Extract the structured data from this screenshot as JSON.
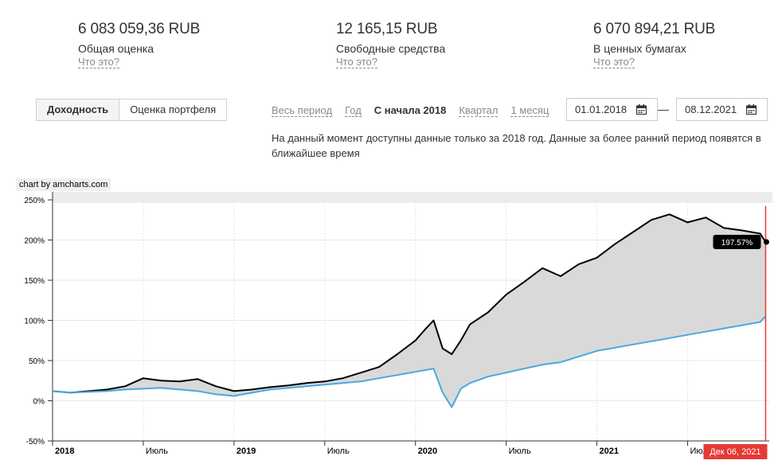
{
  "stats": [
    {
      "value": "6 083 059,36 RUB",
      "label": "Общая оценка",
      "help": "Что это?"
    },
    {
      "value": "12 165,15 RUB",
      "label": "Свободные средства",
      "help": "Что это?"
    },
    {
      "value": "6 070 894,21 RUB",
      "label": "В ценных бумагах",
      "help": "Что это?"
    }
  ],
  "tabs": {
    "yield": "Доходность",
    "portfolio": "Оценка портфеля"
  },
  "periods": {
    "all": "Весь период",
    "year": "Год",
    "since2018": "С начала 2018",
    "quarter": "Квартал",
    "month": "1 месяц"
  },
  "dates": {
    "from": "01.01.2018",
    "to": "08.12.2021",
    "separator": "—"
  },
  "notice": "На данный момент доступны данные только за 2018 год. Данные за более ранний период появятся в ближайшее время",
  "credit": "chart by amcharts.com",
  "chart_data": {
    "type": "line",
    "ylim": [
      -50,
      260
    ],
    "yticks": [
      "250%",
      "200%",
      "150%",
      "100%",
      "50%",
      "0%",
      "-50%"
    ],
    "xticks": [
      "2018",
      "Июль",
      "2019",
      "Июль",
      "2020",
      "Июль",
      "2021",
      "Июль"
    ],
    "cursor_label": "Дек 06, 2021",
    "value_label": "197.57%",
    "series": [
      {
        "name": "portfolio",
        "color": "#000000",
        "x": [
          2018.0,
          2018.1,
          2018.2,
          2018.3,
          2018.4,
          2018.5,
          2018.6,
          2018.7,
          2018.8,
          2018.9,
          2019.0,
          2019.1,
          2019.2,
          2019.3,
          2019.4,
          2019.5,
          2019.6,
          2019.7,
          2019.8,
          2019.9,
          2020.0,
          2020.05,
          2020.1,
          2020.15,
          2020.2,
          2020.25,
          2020.3,
          2020.4,
          2020.5,
          2020.6,
          2020.7,
          2020.8,
          2020.9,
          2021.0,
          2021.1,
          2021.2,
          2021.3,
          2021.4,
          2021.5,
          2021.6,
          2021.7,
          2021.8,
          2021.9,
          2021.93
        ],
        "values": [
          12,
          10,
          12,
          14,
          18,
          28,
          25,
          24,
          27,
          18,
          12,
          14,
          17,
          19,
          22,
          24,
          28,
          35,
          42,
          58,
          75,
          88,
          100,
          65,
          58,
          75,
          95,
          110,
          132,
          148,
          165,
          155,
          170,
          178,
          195,
          210,
          225,
          232,
          222,
          228,
          215,
          212,
          208,
          197.57
        ]
      },
      {
        "name": "benchmark",
        "color": "#4aa8e0",
        "x": [
          2018.0,
          2018.1,
          2018.2,
          2018.3,
          2018.4,
          2018.5,
          2018.6,
          2018.7,
          2018.8,
          2018.9,
          2019.0,
          2019.1,
          2019.2,
          2019.3,
          2019.4,
          2019.5,
          2019.6,
          2019.7,
          2019.8,
          2019.9,
          2020.0,
          2020.1,
          2020.15,
          2020.2,
          2020.25,
          2020.3,
          2020.4,
          2020.5,
          2020.6,
          2020.7,
          2020.8,
          2020.9,
          2021.0,
          2021.1,
          2021.2,
          2021.3,
          2021.4,
          2021.5,
          2021.6,
          2021.7,
          2021.8,
          2021.9,
          2021.93
        ],
        "values": [
          12,
          10,
          11,
          12,
          14,
          15,
          16,
          14,
          12,
          8,
          6,
          10,
          14,
          16,
          18,
          20,
          22,
          24,
          28,
          32,
          36,
          40,
          10,
          -8,
          15,
          22,
          30,
          35,
          40,
          45,
          48,
          55,
          62,
          66,
          70,
          74,
          78,
          82,
          86,
          90,
          94,
          98,
          105
        ]
      }
    ]
  }
}
